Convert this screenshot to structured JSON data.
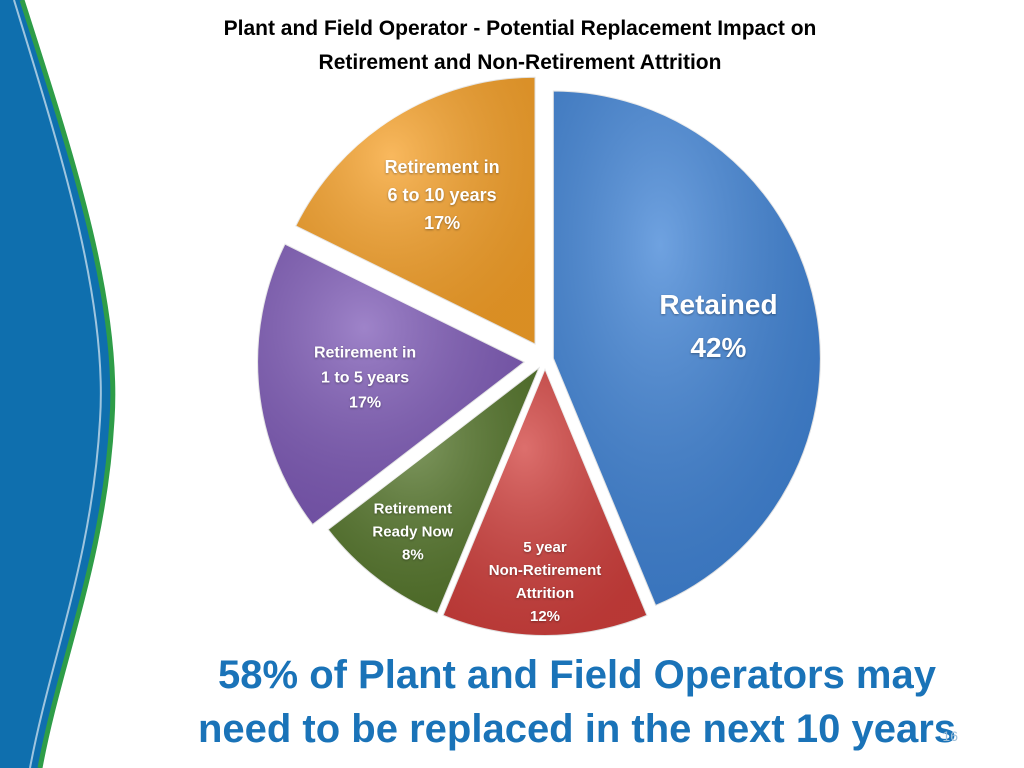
{
  "chart_data": {
    "type": "pie",
    "title_lines": [
      "Plant and Field Operator - Potential Replacement Impact on",
      "Retirement and  Non-Retirement Attrition"
    ],
    "slices": [
      {
        "label_lines": [
          "Retained",
          "42%"
        ],
        "value": 42,
        "color": "#3f83d6"
      },
      {
        "label_lines": [
          "5 year",
          "Non-Retirement",
          "Attrition",
          "12%"
        ],
        "value": 12,
        "color": "#d13f3c"
      },
      {
        "label_lines": [
          "Retirement",
          "Ready Now",
          "8%"
        ],
        "value": 8,
        "color": "#55762b"
      },
      {
        "label_lines": [
          "Retirement in",
          "1 to 5 years",
          "17%"
        ],
        "value": 17,
        "color": "#7e5ab7"
      },
      {
        "label_lines": [
          "Retirement in",
          "6 to 10 years",
          "17%"
        ],
        "value": 17,
        "color": "#f7a128"
      }
    ]
  },
  "footer": {
    "lines": [
      "58% of Plant and Field Operators may",
      "need to be replaced in the next 10 years"
    ]
  },
  "page_number": "16",
  "colors": {
    "accent_blue": "#1a73b8",
    "left_band_blue": "#0f6fae",
    "left_band_green": "#2e9d48"
  }
}
